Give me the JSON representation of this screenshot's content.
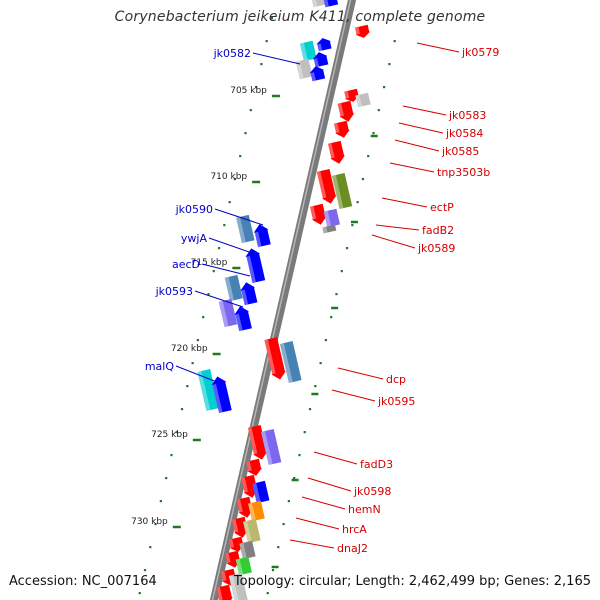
{
  "header": {
    "title": "Corynebacterium jeikeium K411, complete genome"
  },
  "footer": {
    "accession": "Accession: NC_007164",
    "summary": "Topology: circular; Length: 2,462,499 bp; Genes: 2,165"
  },
  "colors": {
    "forward_strand_label": "#0000c8",
    "reverse_strand_label": "#d40000",
    "backbone": "#7a7a7a",
    "tick": "#1f7a1f",
    "gene_red": "#ff0000",
    "gene_blue": "#0000ff",
    "gene_steelblue": "#4682b4",
    "gene_cyan": "#00ced1",
    "gene_slateblue": "#7b68ee",
    "gene_olive": "#6b8e23",
    "gene_orange": "#ff8c00",
    "gene_khaki": "#bdb76b",
    "gene_gray": "#808080",
    "gene_silver": "#c0c0c0",
    "gene_green": "#32cd32"
  },
  "scale": {
    "position_labels": [
      "705 kbp",
      "710 kbp",
      "715 kbp",
      "720 kbp",
      "725 kbp",
      "730 kbp"
    ]
  },
  "labels": {
    "forward": [
      "jk0582",
      "jk0590",
      "ywjA",
      "aecD",
      "jk0593",
      "malQ"
    ],
    "reverse": [
      "jk0579",
      "jk0583",
      "jk0584",
      "jk0585",
      "tnp3503b",
      "ectP",
      "fadB2",
      "jk0589",
      "dcp",
      "jk0595",
      "fadD3",
      "jk0598",
      "hemN",
      "hrcA",
      "dnaJ2"
    ]
  }
}
